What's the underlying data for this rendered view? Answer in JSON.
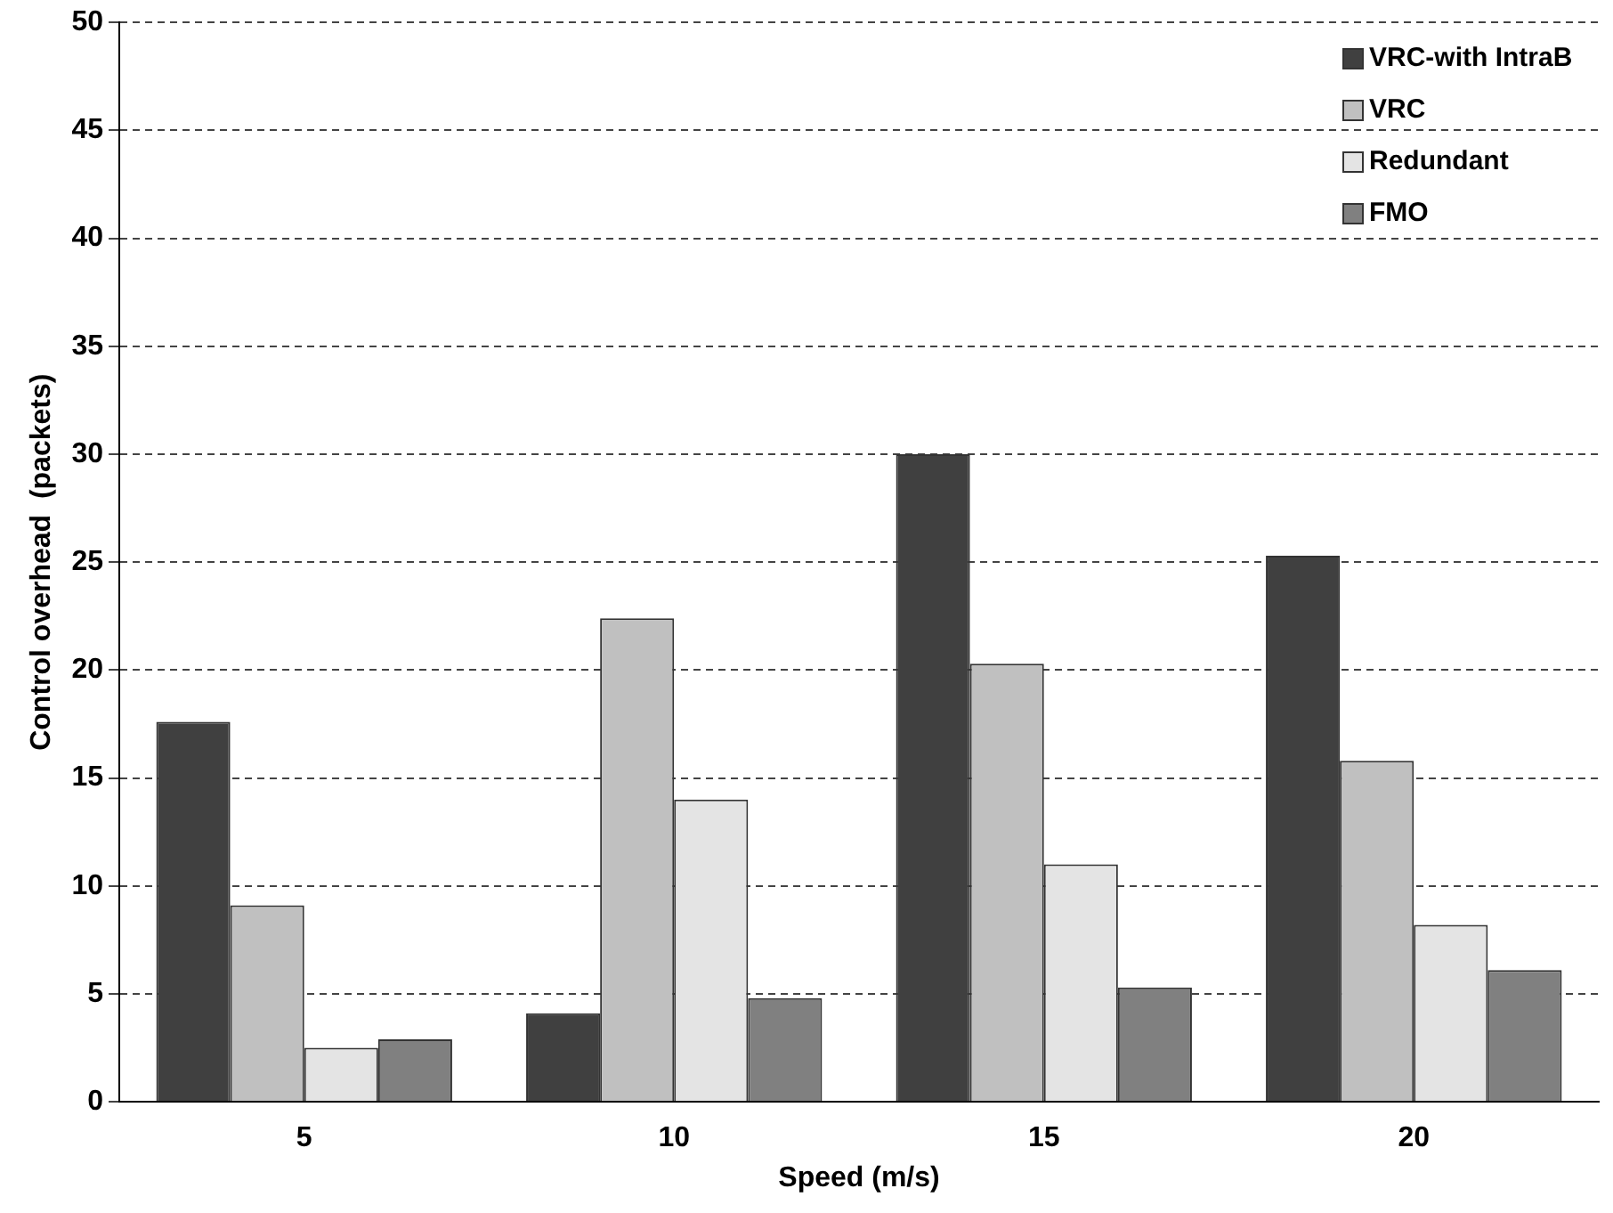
{
  "chart_data": {
    "type": "bar",
    "xlabel": "Speed (m/s)",
    "ylabel": "Control overhead  (packets)",
    "categories": [
      "5",
      "10",
      "15",
      "20"
    ],
    "series": [
      {
        "name": "VRC-with IntraB",
        "color": "#404040",
        "values": [
          17.6,
          4.1,
          30.0,
          25.3
        ]
      },
      {
        "name": "VRC",
        "color": "#c0c0c0",
        "values": [
          9.1,
          22.4,
          20.3,
          15.8
        ]
      },
      {
        "name": "Redundant",
        "color": "#e4e4e4",
        "values": [
          2.5,
          14.0,
          11.0,
          8.2
        ]
      },
      {
        "name": "FMO",
        "color": "#808080",
        "values": [
          2.9,
          4.8,
          5.3,
          6.1
        ]
      }
    ],
    "ylim": [
      0,
      50
    ],
    "yticks": [
      0,
      5,
      10,
      15,
      20,
      25,
      30,
      35,
      40,
      45,
      50
    ],
    "grid": "y",
    "legend": "top right"
  }
}
